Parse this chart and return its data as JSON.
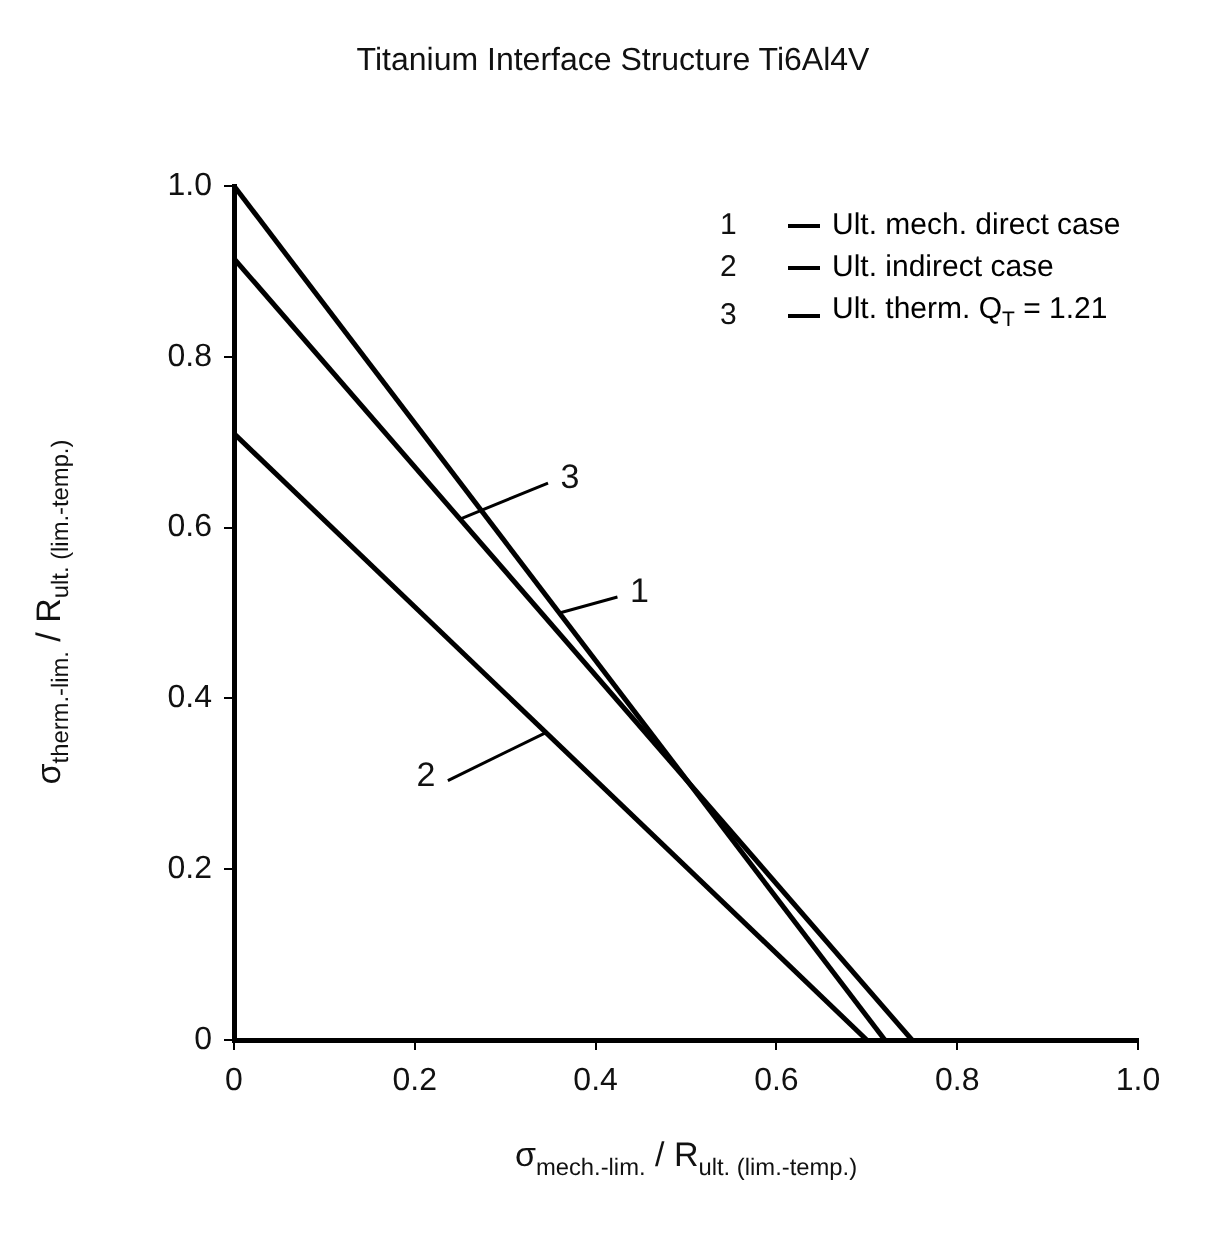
{
  "chart_data": {
    "type": "line",
    "title": "Titanium Interface Structure Ti6Al4V",
    "xlabel": "σ$_{mech.-lim.}$ / R$_{ult. (lim.-temp.)}$",
    "ylabel": "σ$_{therm.-lim.}$ / R$_{ult. (lim.-temp.)}$",
    "series": [
      {
        "name": "Ult. mech. direct case",
        "color": "#000000",
        "x": [
          0,
          0.72
        ],
        "values": [
          1.0,
          0
        ]
      },
      {
        "name": "Ult. indirect case",
        "color": "#000000",
        "x": [
          0,
          0.7
        ],
        "values": [
          0.71,
          0
        ]
      },
      {
        "name": "Ult. therm. Q$_{T}$ = 1.21",
        "color": "#000000",
        "x": [
          0,
          0.75
        ],
        "values": [
          0.915,
          0
        ]
      }
    ],
    "annotations": [
      {
        "text": "1",
        "x": 0.36,
        "y": 0.5
      },
      {
        "text": "2",
        "x": 0.345,
        "y": 0.36
      },
      {
        "text": "3",
        "x": 0.25,
        "y": 0.61
      }
    ],
    "xlim": [
      0,
      1
    ],
    "ylim": [
      0,
      1
    ],
    "xticks": [
      0,
      0.2,
      0.4,
      0.6,
      0.8,
      {
        "value": 1,
        "label": "1.0"
      }
    ],
    "yticks": [
      0,
      0.2,
      0.4,
      0.6,
      0.8,
      {
        "value": 1,
        "label": "1.0"
      }
    ],
    "grid": false,
    "legend": "top right",
    "marker": "none",
    "line_style": "solid"
  }
}
